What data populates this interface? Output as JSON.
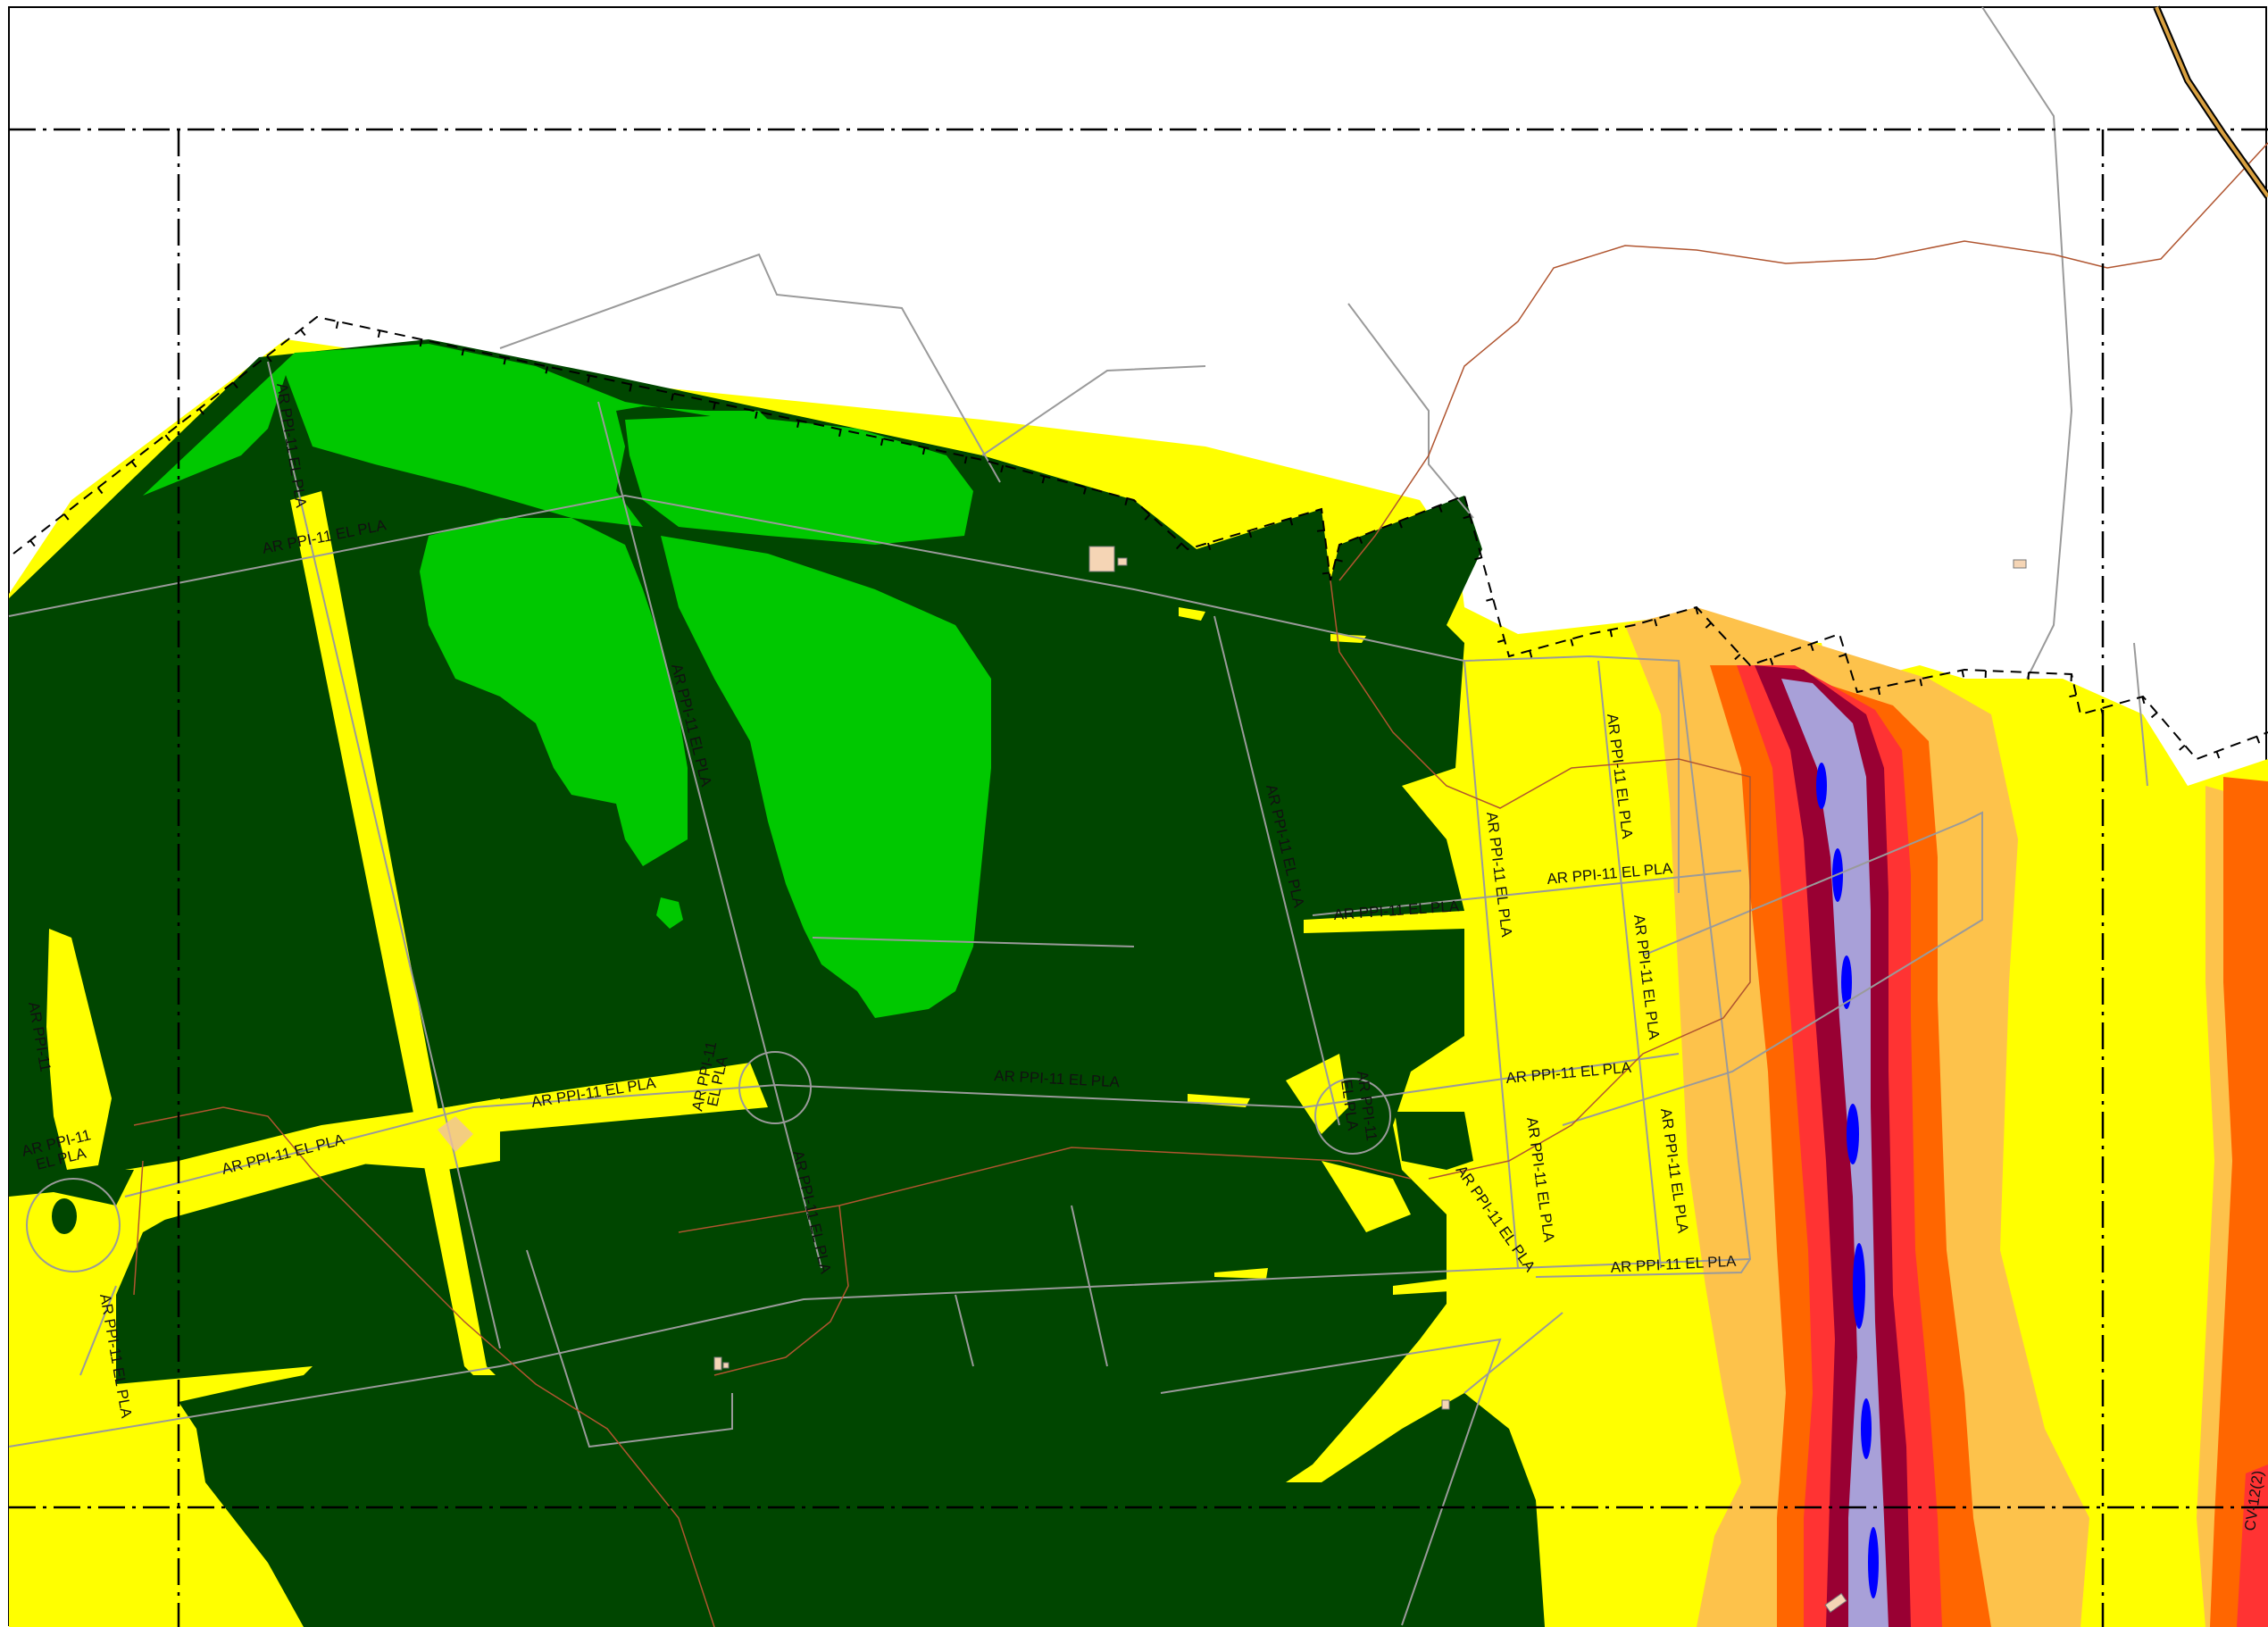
{
  "map": {
    "road_label": "AR PPI-11 EL PLA",
    "road_label_split": [
      "AR PPI-11",
      "EL PLA"
    ],
    "corner_label": "CV-12(2)"
  },
  "colors": {
    "background": "#ffffff",
    "dark_forest": "#004600",
    "light_green": "#00c800",
    "yellow_zone": "#ffff00",
    "light_orange": "#fdc24b",
    "orange": "#ff6600",
    "red": "#ff3333",
    "dark_red": "#990033",
    "lavender": "#a8a0d8",
    "blue_channel": "#0000ff",
    "building_fill": "#f5d5b5",
    "road_line": "#9a9a9a",
    "contour_line": "#b05530",
    "frame_line": "#000000"
  },
  "legend_icons": [
    "building-icon",
    "roundabout-icon"
  ]
}
